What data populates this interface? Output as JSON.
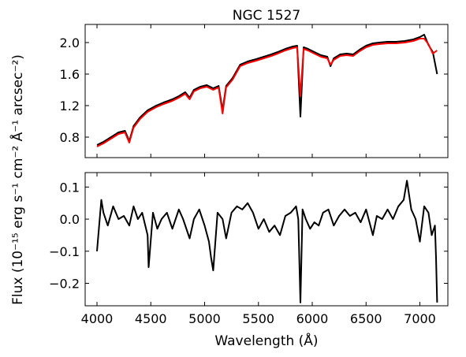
{
  "chart_data": [
    {
      "type": "line",
      "title": "NGC 1527",
      "xlim": [
        3890,
        7260
      ],
      "ylim": [
        0.54,
        2.23
      ],
      "yticks": [
        0.8,
        1.2,
        1.6,
        2.0
      ],
      "ytick_labels": [
        "0.8",
        "1.2",
        "1.6",
        "2.0"
      ],
      "grid": false,
      "series": [
        {
          "color": "#000000",
          "x": [
            4000,
            4060,
            4130,
            4200,
            4260,
            4300,
            4340,
            4400,
            4470,
            4550,
            4620,
            4700,
            4760,
            4820,
            4861,
            4900,
            4960,
            5020,
            5080,
            5130,
            5167,
            5200,
            5260,
            5330,
            5400,
            5480,
            5550,
            5620,
            5680,
            5750,
            5820,
            5860,
            5890,
            5920,
            5960,
            6020,
            6080,
            6140,
            6170,
            6200,
            6260,
            6320,
            6380,
            6440,
            6500,
            6563,
            6620,
            6700,
            6780,
            6860,
            6940,
            7000,
            7040,
            7080,
            7120,
            7160
          ],
          "y": [
            0.7,
            0.74,
            0.8,
            0.86,
            0.88,
            0.75,
            0.94,
            1.05,
            1.14,
            1.2,
            1.24,
            1.28,
            1.32,
            1.37,
            1.3,
            1.4,
            1.44,
            1.46,
            1.42,
            1.45,
            1.14,
            1.45,
            1.55,
            1.72,
            1.76,
            1.79,
            1.82,
            1.85,
            1.88,
            1.92,
            1.95,
            1.96,
            1.06,
            1.94,
            1.92,
            1.88,
            1.84,
            1.82,
            1.7,
            1.8,
            1.85,
            1.86,
            1.85,
            1.91,
            1.96,
            1.99,
            2.0,
            2.01,
            2.01,
            2.02,
            2.04,
            2.07,
            2.1,
            1.97,
            1.88,
            1.6
          ]
        },
        {
          "color": "#ff0000",
          "x": [
            4000,
            4060,
            4130,
            4200,
            4260,
            4300,
            4340,
            4400,
            4470,
            4550,
            4620,
            4700,
            4760,
            4820,
            4861,
            4900,
            4960,
            5020,
            5080,
            5130,
            5167,
            5200,
            5260,
            5330,
            5400,
            5480,
            5550,
            5620,
            5680,
            5750,
            5820,
            5860,
            5890,
            5920,
            5960,
            6020,
            6080,
            6140,
            6170,
            6200,
            6260,
            6320,
            6380,
            6440,
            6500,
            6563,
            6620,
            6700,
            6780,
            6860,
            6940,
            7000,
            7040,
            7080,
            7120,
            7160
          ],
          "y": [
            0.68,
            0.72,
            0.78,
            0.84,
            0.86,
            0.73,
            0.92,
            1.03,
            1.12,
            1.18,
            1.22,
            1.26,
            1.3,
            1.35,
            1.28,
            1.38,
            1.42,
            1.44,
            1.4,
            1.43,
            1.1,
            1.43,
            1.53,
            1.7,
            1.74,
            1.77,
            1.8,
            1.83,
            1.86,
            1.9,
            1.93,
            1.94,
            1.32,
            1.92,
            1.9,
            1.86,
            1.82,
            1.8,
            1.72,
            1.78,
            1.83,
            1.84,
            1.83,
            1.89,
            1.94,
            1.97,
            1.98,
            1.99,
            1.99,
            2.0,
            2.02,
            2.05,
            2.05,
            1.98,
            1.86,
            1.9
          ]
        }
      ]
    },
    {
      "type": "line",
      "xlabel": "Wavelength (Å)",
      "ylabel": "Flux (10⁻¹⁵ erg s⁻¹ cm⁻² Å⁻¹ arcsec⁻²)",
      "xlim": [
        3890,
        7260
      ],
      "ylim": [
        -0.27,
        0.145
      ],
      "xticks": [
        4000,
        4500,
        5000,
        5500,
        6000,
        6500,
        7000
      ],
      "xtick_labels": [
        "4000",
        "4500",
        "5000",
        "5500",
        "6000",
        "6500",
        "7000"
      ],
      "yticks": [
        -0.2,
        -0.1,
        0.0,
        0.1
      ],
      "ytick_labels": [
        "−0.2",
        "−0.1",
        "0.0",
        "0.1"
      ],
      "grid": false,
      "series": [
        {
          "color": "#000000",
          "x": [
            4000,
            4040,
            4060,
            4100,
            4150,
            4200,
            4250,
            4300,
            4340,
            4380,
            4420,
            4470,
            4480,
            4520,
            4560,
            4600,
            4650,
            4700,
            4760,
            4800,
            4861,
            4900,
            4950,
            5000,
            5040,
            5060,
            5080,
            5120,
            5167,
            5200,
            5250,
            5300,
            5350,
            5400,
            5450,
            5500,
            5550,
            5600,
            5650,
            5700,
            5750,
            5800,
            5850,
            5870,
            5890,
            5910,
            5940,
            5980,
            6020,
            6060,
            6100,
            6150,
            6200,
            6250,
            6300,
            6350,
            6400,
            6450,
            6500,
            6563,
            6600,
            6650,
            6700,
            6750,
            6800,
            6850,
            6880,
            6920,
            6960,
            7000,
            7040,
            7080,
            7110,
            7140,
            7150,
            7160
          ],
          "y": [
            -0.1,
            0.06,
            0.02,
            -0.02,
            0.04,
            0.0,
            0.01,
            -0.02,
            0.04,
            0.0,
            0.02,
            -0.05,
            -0.15,
            0.02,
            -0.03,
            0.0,
            0.02,
            -0.03,
            0.03,
            0.0,
            -0.06,
            0.0,
            0.03,
            -0.02,
            -0.07,
            -0.12,
            -0.16,
            0.02,
            0.0,
            -0.06,
            0.02,
            0.04,
            0.03,
            0.05,
            0.02,
            -0.03,
            0.0,
            -0.04,
            -0.02,
            -0.05,
            0.01,
            0.02,
            0.04,
            0.0,
            -0.26,
            0.03,
            0.0,
            -0.03,
            -0.01,
            -0.02,
            0.02,
            0.03,
            -0.02,
            0.01,
            0.03,
            0.01,
            0.02,
            -0.01,
            0.03,
            -0.05,
            0.01,
            0.0,
            0.03,
            0.0,
            0.04,
            0.06,
            0.12,
            0.03,
            0.0,
            -0.07,
            0.04,
            0.02,
            -0.05,
            -0.02,
            -0.12,
            -0.26
          ]
        }
      ]
    }
  ]
}
